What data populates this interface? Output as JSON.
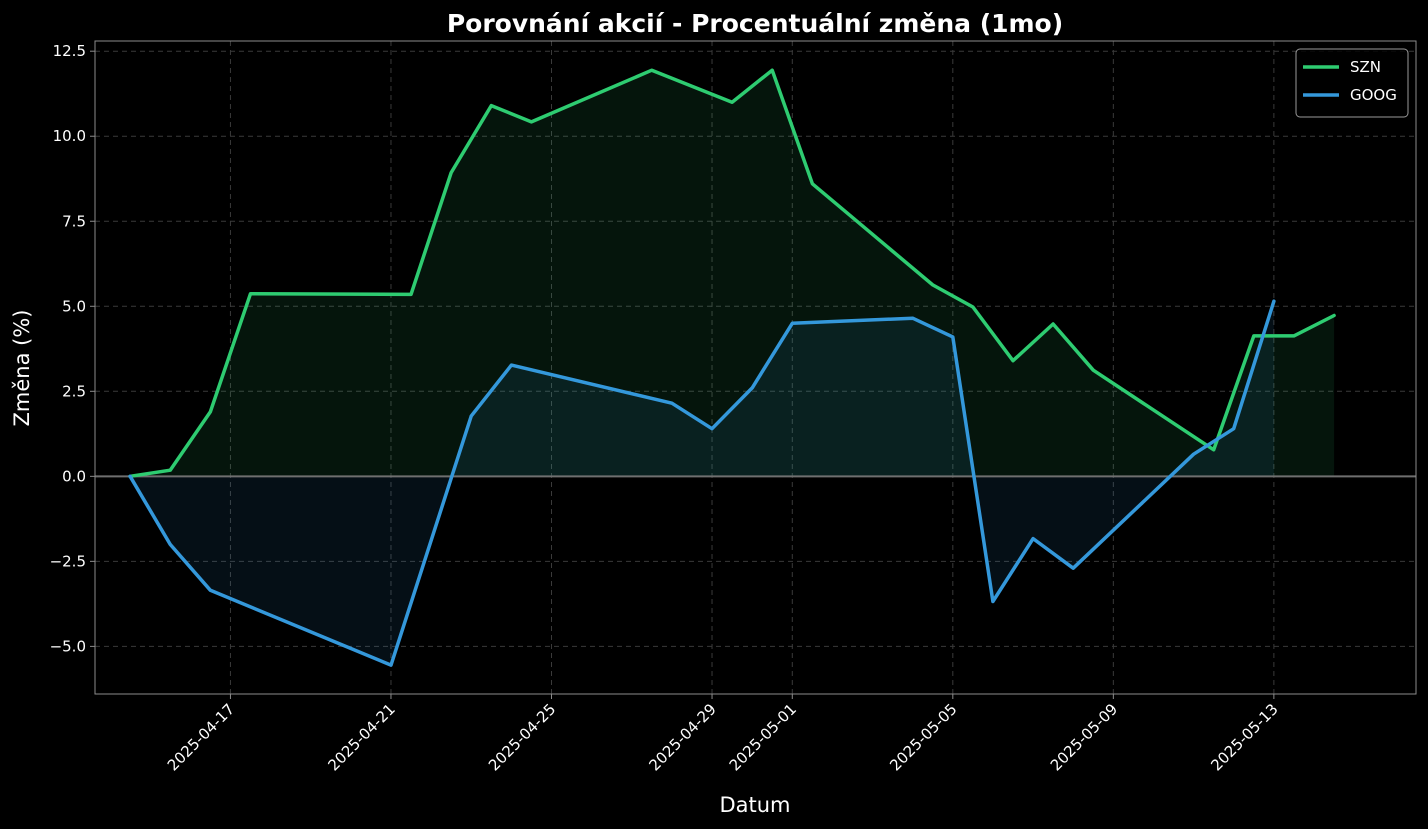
{
  "chart_data": {
    "type": "line",
    "title": "Porovnání akcií - Procentuální změna (1mo)",
    "xlabel": "Datum",
    "ylabel": "Změna (%)",
    "ylim": [
      -6.4,
      12.8
    ],
    "yticks": [
      -5.0,
      -2.5,
      0.0,
      2.5,
      5.0,
      7.5,
      10.0,
      12.5
    ],
    "ytick_labels": [
      "−5.0",
      "−2.5",
      "0.0",
      "2.5",
      "5.0",
      "7.5",
      "10.0",
      "12.5"
    ],
    "xticks": [
      "2025-04-17",
      "2025-04-21",
      "2025-04-25",
      "2025-04-29",
      "2025-05-01",
      "2025-05-05",
      "2025-05-09",
      "2025-05-13"
    ],
    "xlim": [
      "2025-04-13T15:00",
      "2025-05-16T13:00"
    ],
    "grid": true,
    "legend_position": "top-right",
    "colors": {
      "background": "#000000",
      "axis": "#8c8c8c",
      "grid": "#3a3a3a",
      "zero_line": "#6f6f6f",
      "legend_border": "#9a9a9a"
    },
    "series": [
      {
        "name": "SZN",
        "color": "#2ecc71",
        "points": [
          {
            "x": "2025-04-14T12:00",
            "y": 0.0
          },
          {
            "x": "2025-04-15T12:00",
            "y": 0.18
          },
          {
            "x": "2025-04-16T12:00",
            "y": 1.9
          },
          {
            "x": "2025-04-17T12:00",
            "y": 5.37
          },
          {
            "x": "2025-04-21T12:00",
            "y": 5.35
          },
          {
            "x": "2025-04-22T12:00",
            "y": 8.93
          },
          {
            "x": "2025-04-23T12:00",
            "y": 10.9
          },
          {
            "x": "2025-04-24T12:00",
            "y": 10.42
          },
          {
            "x": "2025-04-27T12:00",
            "y": 11.94
          },
          {
            "x": "2025-04-29T12:00",
            "y": 11.0
          },
          {
            "x": "2025-04-30T12:00",
            "y": 11.94
          },
          {
            "x": "2025-05-01T12:00",
            "y": 8.6
          },
          {
            "x": "2025-05-04T12:00",
            "y": 5.63
          },
          {
            "x": "2025-05-05T12:00",
            "y": 4.98
          },
          {
            "x": "2025-05-06T12:00",
            "y": 3.4
          },
          {
            "x": "2025-05-07T12:00",
            "y": 4.48
          },
          {
            "x": "2025-05-08T12:00",
            "y": 3.12
          },
          {
            "x": "2025-05-11T12:00",
            "y": 0.78
          },
          {
            "x": "2025-05-12T12:00",
            "y": 4.13
          },
          {
            "x": "2025-05-13T12:00",
            "y": 4.13
          },
          {
            "x": "2025-05-14T12:00",
            "y": 4.73
          }
        ]
      },
      {
        "name": "GOOG",
        "color": "#3498db",
        "points": [
          {
            "x": "2025-04-14T12:00",
            "y": 0.0
          },
          {
            "x": "2025-04-15T12:00",
            "y": -2.0
          },
          {
            "x": "2025-04-16T12:00",
            "y": -3.35
          },
          {
            "x": "2025-04-21T00:00",
            "y": -5.55
          },
          {
            "x": "2025-04-23T00:00",
            "y": 1.77
          },
          {
            "x": "2025-04-24T00:00",
            "y": 3.27
          },
          {
            "x": "2025-04-28T00:00",
            "y": 2.15
          },
          {
            "x": "2025-04-29T00:00",
            "y": 1.4
          },
          {
            "x": "2025-04-30T00:00",
            "y": 2.6
          },
          {
            "x": "2025-05-01T00:00",
            "y": 4.5
          },
          {
            "x": "2025-05-04T00:00",
            "y": 4.65
          },
          {
            "x": "2025-05-05T00:00",
            "y": 4.1
          },
          {
            "x": "2025-05-06T00:00",
            "y": -3.68
          },
          {
            "x": "2025-05-07T00:00",
            "y": -1.83
          },
          {
            "x": "2025-05-08T00:00",
            "y": -2.7
          },
          {
            "x": "2025-05-11T00:00",
            "y": 0.65
          },
          {
            "x": "2025-05-12T00:00",
            "y": 1.4
          },
          {
            "x": "2025-05-13T00:00",
            "y": 5.15
          }
        ]
      }
    ]
  }
}
